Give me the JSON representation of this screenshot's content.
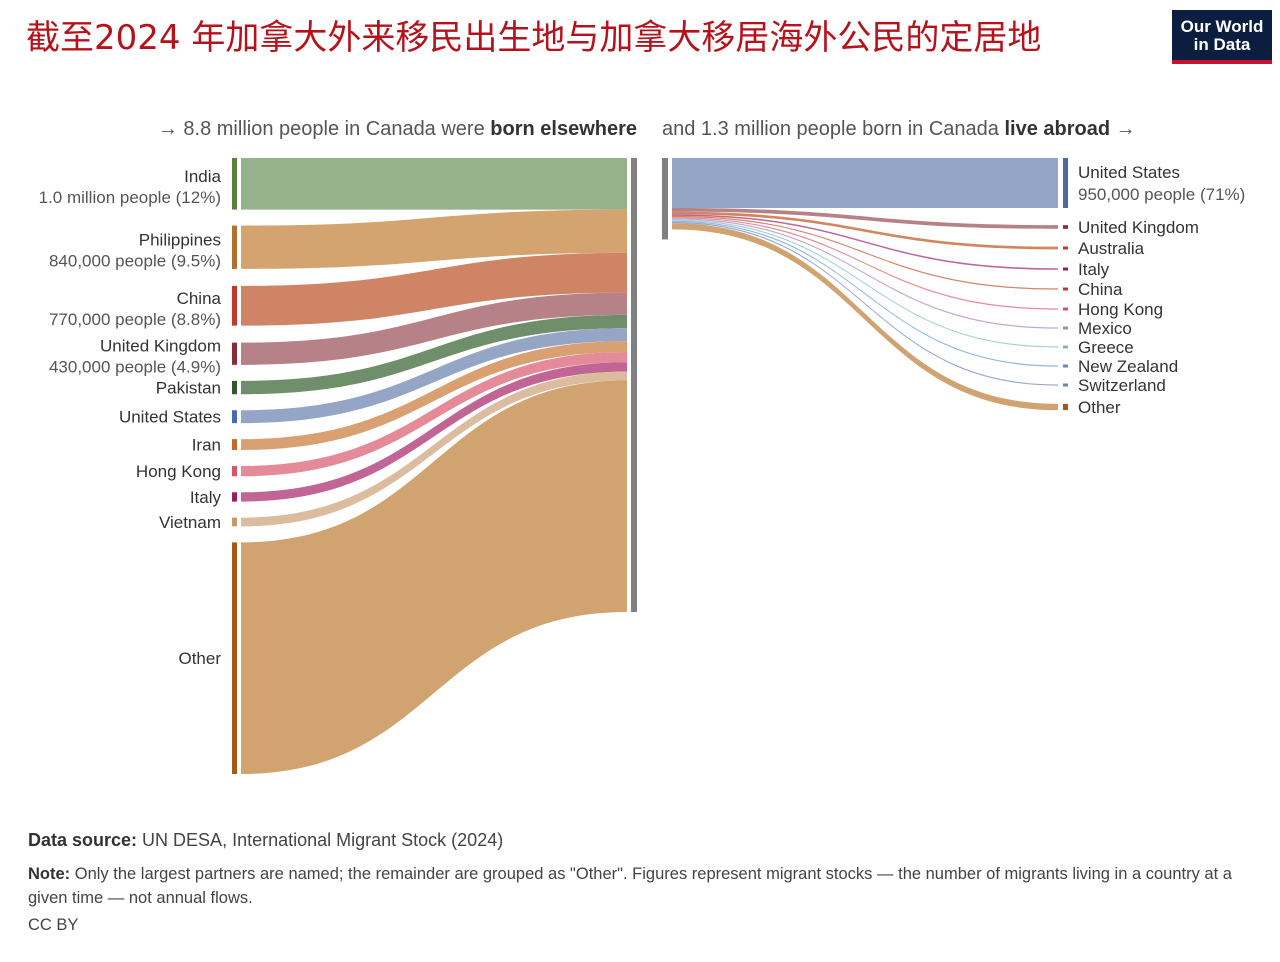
{
  "title": "截至2024 年加拿大外来移民出生地与加拿大移居海外公民的定居地",
  "logo": {
    "line1": "Our World",
    "line2": "in Data"
  },
  "chart_data": {
    "type": "sankey",
    "left": {
      "heading_prefix": "→ 8.8 million people in Canada were ",
      "heading_bold": "born elsewhere",
      "total_millions": 8.8,
      "flows": [
        {
          "name": "India",
          "detail": "1.0 million people (12%)",
          "value_millions": 1.0,
          "color": "#96b28c",
          "bar": "#5a7f45"
        },
        {
          "name": "Philippines",
          "detail": "840,000 people (9.5%)",
          "value_millions": 0.84,
          "color": "#d3a370",
          "bar": "#b46f2b"
        },
        {
          "name": "China",
          "detail": "770,000 people (8.8%)",
          "value_millions": 0.77,
          "color": "#d08466",
          "bar": "#c0392b"
        },
        {
          "name": "United Kingdom",
          "detail": "430,000 people (4.9%)",
          "value_millions": 0.43,
          "color": "#b68187",
          "bar": "#8a2b3a"
        },
        {
          "name": "Pakistan",
          "detail": "",
          "value_millions": 0.26,
          "color": "#6e8f6a",
          "bar": "#2e5a2a"
        },
        {
          "name": "United States",
          "detail": "",
          "value_millions": 0.25,
          "color": "#95a5c6",
          "bar": "#4c6aa6"
        },
        {
          "name": "Iran",
          "detail": "",
          "value_millions": 0.21,
          "color": "#d9a071",
          "bar": "#c7662c"
        },
        {
          "name": "Hong Kong",
          "detail": "",
          "value_millions": 0.2,
          "color": "#e58a98",
          "bar": "#d9536a"
        },
        {
          "name": "Italy",
          "detail": "",
          "value_millions": 0.18,
          "color": "#c06594",
          "bar": "#9b1d5c"
        },
        {
          "name": "Vietnam",
          "detail": "",
          "value_millions": 0.17,
          "color": "#dcbc9e",
          "bar": "#c9976c"
        },
        {
          "name": "Other",
          "detail": "",
          "value_millions": 4.49,
          "color": "#d0a370",
          "bar": "#a65a18"
        }
      ]
    },
    "right": {
      "heading_prefix": "and 1.3 million people born in Canada ",
      "heading_bold": "live abroad",
      "heading_suffix": " →",
      "total_millions": 1.3,
      "flows": [
        {
          "name": "United States",
          "detail": "950,000 people (71%)",
          "value_millions": 0.95,
          "color": "#95a5c6",
          "bar": "#4c6aa6"
        },
        {
          "name": "United Kingdom",
          "detail": "",
          "value_millions": 0.07,
          "color": "#b68187",
          "bar": "#8a2b3a"
        },
        {
          "name": "Australia",
          "detail": "",
          "value_millions": 0.05,
          "color": "#d0875e",
          "bar": "#c0392b"
        },
        {
          "name": "Italy",
          "detail": "",
          "value_millions": 0.03,
          "color": "#c06594",
          "bar": "#9b1d5c"
        },
        {
          "name": "China",
          "detail": "",
          "value_millions": 0.02,
          "color": "#d08466",
          "bar": "#c0392b"
        },
        {
          "name": "Hong Kong",
          "detail": "",
          "value_millions": 0.02,
          "color": "#e58a98",
          "bar": "#d9536a"
        },
        {
          "name": "Mexico",
          "detail": "",
          "value_millions": 0.01,
          "color": "#c3a6cf",
          "bar": "#a98cb8"
        },
        {
          "name": "Greece",
          "detail": "",
          "value_millions": 0.01,
          "color": "#a9cfd6",
          "bar": "#7fb3bf"
        },
        {
          "name": "New Zealand",
          "detail": "",
          "value_millions": 0.01,
          "color": "#8fb6dd",
          "bar": "#5b8fc4"
        },
        {
          "name": "Switzerland",
          "detail": "",
          "value_millions": 0.01,
          "color": "#9aa6cf",
          "bar": "#6f7fb8"
        },
        {
          "name": "Other",
          "detail": "",
          "value_millions": 0.12,
          "color": "#d0a370",
          "bar": "#a65a18"
        }
      ]
    },
    "center_bar_color": "#808080"
  },
  "footer": {
    "source_label": "Data source:",
    "source_text": " UN DESA, International Migrant Stock (2024)",
    "note_label": "Note:",
    "note_text": " Only the largest partners are named; the remainder are grouped as \"Other\". Figures represent migrant stocks — the number of migrants living in a country at a given time — not annual flows.",
    "license": "CC BY"
  }
}
